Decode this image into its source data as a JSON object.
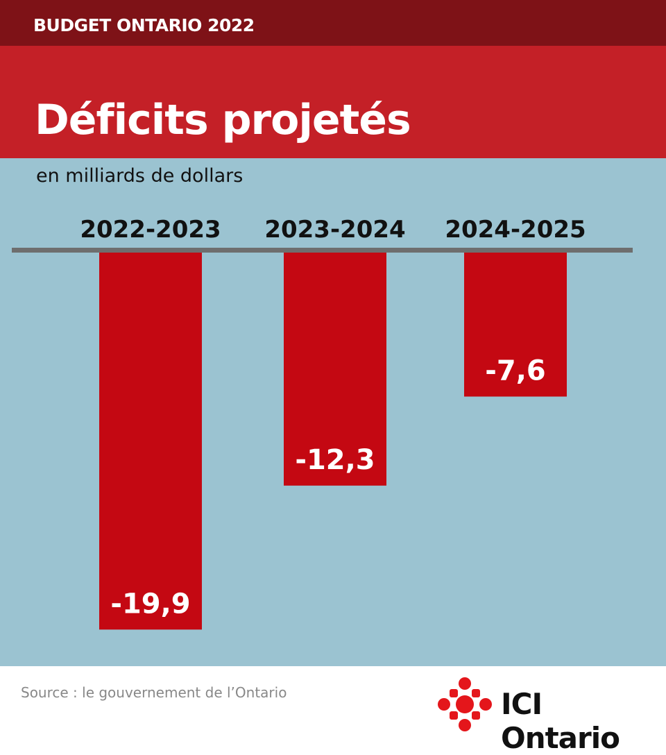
{
  "header": {
    "kicker": "BUDGET ONTARIO 2022",
    "title": "Déficits projetés",
    "subtitle": "en milliards de dollars"
  },
  "colors": {
    "header_dark": "#7e1217",
    "header_red": "#c42027",
    "background": "#9bc3d1",
    "bar": "#c40812",
    "axis": "#6e6e6e"
  },
  "chart_data": {
    "type": "bar",
    "title": "Déficits projetés",
    "subtitle": "en milliards de dollars",
    "categories": [
      "2022-2023",
      "2023-2024",
      "2024-2025"
    ],
    "values": [
      -19.9,
      -12.3,
      -7.6
    ],
    "value_labels": [
      "-19,9",
      "-12,3",
      "-7,6"
    ],
    "ylim": [
      -20,
      0
    ],
    "grid": false
  },
  "footer": {
    "source": "Source : le gouvernement de l’Ontario",
    "logo": "ICI Ontario"
  }
}
